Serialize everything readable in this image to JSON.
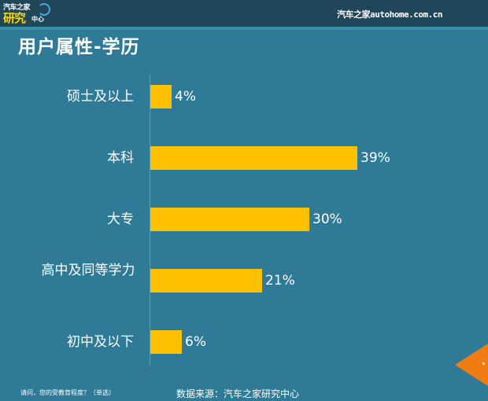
{
  "header": {
    "logo_line1": "汽车之家",
    "logo_line2": "研究",
    "logo_line3": "中心",
    "brand_cn": "汽车之家",
    "brand_en": "autohome.com.cn"
  },
  "title": "用户属性-学历",
  "footer": {
    "question": "请问，您的受教育程度？（单选）",
    "source": "数据来源：汽车之家研究中心"
  },
  "colors": {
    "bar": "#ffc000",
    "background": "#2f7b97",
    "topbar": "#1f4659",
    "arrow": "#f07c14"
  },
  "chart_data": {
    "type": "bar",
    "orientation": "horizontal",
    "title": "用户属性-学历",
    "categories": [
      "硕士及以上",
      "本科",
      "大专",
      "高中及同等学力",
      "初中及以下"
    ],
    "values": [
      4,
      39,
      30,
      21,
      6
    ],
    "labels": [
      "4%",
      "39%",
      "30%",
      "21%",
      "6%"
    ],
    "unit": "%",
    "xlabel": "",
    "ylabel": "",
    "grid": false,
    "legend": false
  }
}
